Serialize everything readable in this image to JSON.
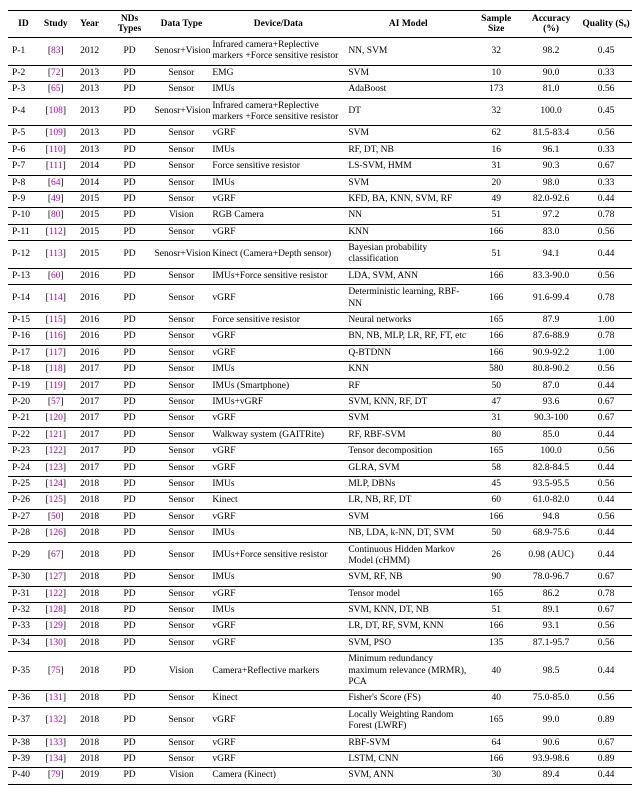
{
  "table": {
    "columns": [
      "ID",
      "Study",
      "Year",
      "NDs Types",
      "Data Type",
      "Device/Data",
      "AI Model",
      "Sample Size",
      "Accuracy (%)",
      "Quality (Sₒ)"
    ],
    "study_color": "#b000b0",
    "rows": [
      {
        "id": "P-1",
        "study": "83",
        "year": "2012",
        "nds": "PD",
        "datatype": "Senosr+Vision",
        "device": "Infrared camera+Replective markers +Force sensitive resistor",
        "aimodel": "NN, SVM",
        "sample": "32",
        "acc": "98.2",
        "quality": "0.45"
      },
      {
        "id": "P-2",
        "study": "72",
        "year": "2013",
        "nds": "PD",
        "datatype": "Sensor",
        "device": "EMG",
        "aimodel": "SVM",
        "sample": "10",
        "acc": "90.0",
        "quality": "0.33"
      },
      {
        "id": "P-3",
        "study": "65",
        "year": "2013",
        "nds": "PD",
        "datatype": "Sensor",
        "device": "IMUs",
        "aimodel": "AdaBoost",
        "sample": "173",
        "acc": "81.0",
        "quality": "0.56"
      },
      {
        "id": "P-4",
        "study": "108",
        "year": "2013",
        "nds": "PD",
        "datatype": "Senosr+Vision",
        "device": "Infrared camera+Replective markers +Force sensitive resistor",
        "aimodel": "DT",
        "sample": "32",
        "acc": "100.0",
        "quality": "0.45"
      },
      {
        "id": "P-5",
        "study": "109",
        "year": "2013",
        "nds": "PD",
        "datatype": "Sensor",
        "device": "vGRF",
        "aimodel": "SVM",
        "sample": "62",
        "acc": "81.5-83.4",
        "quality": "0.56"
      },
      {
        "id": "P-6",
        "study": "110",
        "year": "2013",
        "nds": "PD",
        "datatype": "Sensor",
        "device": "IMUs",
        "aimodel": "RF, DT, NB",
        "sample": "16",
        "acc": "96.1",
        "quality": "0.33"
      },
      {
        "id": "P-7",
        "study": "111",
        "year": "2014",
        "nds": "PD",
        "datatype": "Sensor",
        "device": "Force sensitive resistor",
        "aimodel": "LS-SVM, HMM",
        "sample": "31",
        "acc": "90.3",
        "quality": "0.67"
      },
      {
        "id": "P-8",
        "study": "64",
        "year": "2014",
        "nds": "PD",
        "datatype": "Sensor",
        "device": "IMUs",
        "aimodel": "SVM",
        "sample": "20",
        "acc": "98.0",
        "quality": "0.33"
      },
      {
        "id": "P-9",
        "study": "49",
        "year": "2015",
        "nds": "PD",
        "datatype": "Sensor",
        "device": "vGRF",
        "aimodel": "KFD, BA, KNN, SVM, RF",
        "sample": "49",
        "acc": "82.0-92.6",
        "quality": "0.44"
      },
      {
        "id": "P-10",
        "study": "80",
        "year": "2015",
        "nds": "PD",
        "datatype": "Vision",
        "device": "RGB Camera",
        "aimodel": "NN",
        "sample": "51",
        "acc": "97.2",
        "quality": "0.78"
      },
      {
        "id": "P-11",
        "study": "112",
        "year": "2015",
        "nds": "PD",
        "datatype": "Sensor",
        "device": "vGRF",
        "aimodel": "KNN",
        "sample": "166",
        "acc": "83.0",
        "quality": "0.56"
      },
      {
        "id": "P-12",
        "study": "113",
        "year": "2015",
        "nds": "PD",
        "datatype": "Senosr+Vision",
        "device": "Kinect (Camera+Depth sensor)",
        "aimodel": "Bayesian probability classification",
        "sample": "51",
        "acc": "94.1",
        "quality": "0.44"
      },
      {
        "id": "P-13",
        "study": "60",
        "year": "2016",
        "nds": "PD",
        "datatype": "Sensor",
        "device": "IMUs+Force sensitive resistor",
        "aimodel": "LDA, SVM, ANN",
        "sample": "166",
        "acc": "83.3-90.0",
        "quality": "0.56"
      },
      {
        "id": "P-14",
        "study": "114",
        "year": "2016",
        "nds": "PD",
        "datatype": "Sensor",
        "device": "vGRF",
        "aimodel": "Deterministic learning, RBF-NN",
        "sample": "166",
        "acc": "91.6-99.4",
        "quality": "0.78"
      },
      {
        "id": "P-15",
        "study": "115",
        "year": "2016",
        "nds": "PD",
        "datatype": "Sensor",
        "device": "Force sensitive resistor",
        "aimodel": "Neural networks",
        "sample": "165",
        "acc": "87.9",
        "quality": "1.00"
      },
      {
        "id": "P-16",
        "study": "116",
        "year": "2016",
        "nds": "PD",
        "datatype": "Sensor",
        "device": "vGRF",
        "aimodel": "BN, NB, MLP, LR, RF, FT, etc",
        "sample": "166",
        "acc": "87.6-88.9",
        "quality": "0.78"
      },
      {
        "id": "P-17",
        "study": "117",
        "year": "2016",
        "nds": "PD",
        "datatype": "Sensor",
        "device": "vGRF",
        "aimodel": "Q-BTDNN",
        "sample": "166",
        "acc": "90.9-92.2",
        "quality": "1.00"
      },
      {
        "id": "P-18",
        "study": "118",
        "year": "2017",
        "nds": "PD",
        "datatype": "Sensor",
        "device": "IMUs",
        "aimodel": "KNN",
        "sample": "580",
        "acc": "80.8-90.2",
        "quality": "0.56"
      },
      {
        "id": "P-19",
        "study": "119",
        "year": "2017",
        "nds": "PD",
        "datatype": "Sensor",
        "device": "IMUs (Smartphone)",
        "aimodel": "RF",
        "sample": "50",
        "acc": "87.0",
        "quality": "0.44"
      },
      {
        "id": "P-20",
        "study": "57",
        "year": "2017",
        "nds": "PD",
        "datatype": "Sensor",
        "device": "IMUs+vGRF",
        "aimodel": "SVM, KNN, RF, DT",
        "sample": "47",
        "acc": "93.6",
        "quality": "0.67"
      },
      {
        "id": "P-21",
        "study": "120",
        "year": "2017",
        "nds": "PD",
        "datatype": "Sensor",
        "device": "vGRF",
        "aimodel": "SVM",
        "sample": "31",
        "acc": "90.3-100",
        "quality": "0.67"
      },
      {
        "id": "P-22",
        "study": "121",
        "year": "2017",
        "nds": "PD",
        "datatype": "Sensor",
        "device": "Walkway system (GAITRite)",
        "aimodel": "RF, RBF-SVM",
        "sample": "80",
        "acc": "85.0",
        "quality": "0.44"
      },
      {
        "id": "P-23",
        "study": "122",
        "year": "2017",
        "nds": "PD",
        "datatype": "Sensor",
        "device": "vGRF",
        "aimodel": "Tensor decomposition",
        "sample": "165",
        "acc": "100.0",
        "quality": "0.56"
      },
      {
        "id": "P-24",
        "study": "123",
        "year": "2017",
        "nds": "PD",
        "datatype": "Sensor",
        "device": "vGRF",
        "aimodel": "GLRA, SVM",
        "sample": "58",
        "acc": "82.8-84.5",
        "quality": "0.44"
      },
      {
        "id": "P-25",
        "study": "124",
        "year": "2018",
        "nds": "PD",
        "datatype": "Sensor",
        "device": "IMUs",
        "aimodel": "MLP, DBNs",
        "sample": "45",
        "acc": "93.5-95.5",
        "quality": "0.56"
      },
      {
        "id": "P-26",
        "study": "125",
        "year": "2018",
        "nds": "PD",
        "datatype": "Sensor",
        "device": "Kinect",
        "aimodel": "LR, NB, RF, DT",
        "sample": "60",
        "acc": "61.0-82.0",
        "quality": "0.44"
      },
      {
        "id": "P-27",
        "study": "50",
        "year": "2018",
        "nds": "PD",
        "datatype": "Sensor",
        "device": "vGRF",
        "aimodel": "SVM",
        "sample": "166",
        "acc": "94.8",
        "quality": "0.56"
      },
      {
        "id": "P-28",
        "study": "126",
        "year": "2018",
        "nds": "PD",
        "datatype": "Sensor",
        "device": "IMUs",
        "aimodel": "NB, LDA, k-NN, DT, SVM",
        "sample": "50",
        "acc": "68.9-75.6",
        "quality": "0.44"
      },
      {
        "id": "P-29",
        "study": "67",
        "year": "2018",
        "nds": "PD",
        "datatype": "Sensor",
        "device": "IMUs+Force sensitive resistor",
        "aimodel": "Continuous Hidden Markov Model (cHMM)",
        "sample": "26",
        "acc": "0.98 (AUC)",
        "quality": "0.44"
      },
      {
        "id": "P-30",
        "study": "127",
        "year": "2018",
        "nds": "PD",
        "datatype": "Sensor",
        "device": "IMUs",
        "aimodel": "SVM, RF, NB",
        "sample": "90",
        "acc": "78.0-96.7",
        "quality": "0.67"
      },
      {
        "id": "P-31",
        "study": "122",
        "year": "2018",
        "nds": "PD",
        "datatype": "Sensor",
        "device": "vGRF",
        "aimodel": "Tensor model",
        "sample": "165",
        "acc": "86.2",
        "quality": "0.78"
      },
      {
        "id": "P-32",
        "study": "128",
        "year": "2018",
        "nds": "PD",
        "datatype": "Sensor",
        "device": "IMUs",
        "aimodel": "SVM, KNN, DT, NB",
        "sample": "51",
        "acc": "89.1",
        "quality": "0.67"
      },
      {
        "id": "P-33",
        "study": "129",
        "year": "2018",
        "nds": "PD",
        "datatype": "Sensor",
        "device": "vGRF",
        "aimodel": "LR, DT, RF, SVM, KNN",
        "sample": "166",
        "acc": "93.1",
        "quality": "0.56"
      },
      {
        "id": "P-34",
        "study": "130",
        "year": "2018",
        "nds": "PD",
        "datatype": "Sensor",
        "device": "vGRF",
        "aimodel": "SVM, PSO",
        "sample": "135",
        "acc": "87.1-95.7",
        "quality": "0.56"
      },
      {
        "id": "P-35",
        "study": "75",
        "year": "2018",
        "nds": "PD",
        "datatype": "Vision",
        "device": "Camera+Reflective markers",
        "aimodel": "Minimum redundancy maximum relevance (MRMR), PCA",
        "sample": "40",
        "acc": "98.5",
        "quality": "0.44"
      },
      {
        "id": "P-36",
        "study": "131",
        "year": "2018",
        "nds": "PD",
        "datatype": "Sensor",
        "device": "Kinect",
        "aimodel": "Fisher's Score (FS)",
        "sample": "40",
        "acc": "75.0-85.0",
        "quality": "0.56"
      },
      {
        "id": "P-37",
        "study": "132",
        "year": "2018",
        "nds": "PD",
        "datatype": "Sensor",
        "device": "vGRF",
        "aimodel": "Locally Weighting Random Forest (LWRF)",
        "sample": "165",
        "acc": "99.0",
        "quality": "0.89"
      },
      {
        "id": "P-38",
        "study": "133",
        "year": "2018",
        "nds": "PD",
        "datatype": "Sensor",
        "device": "vGRF",
        "aimodel": "RBF-SVM",
        "sample": "64",
        "acc": "90.6",
        "quality": "0.67"
      },
      {
        "id": "P-39",
        "study": "134",
        "year": "2018",
        "nds": "PD",
        "datatype": "Sensor",
        "device": "vGRF",
        "aimodel": "LSTM, CNN",
        "sample": "166",
        "acc": "93.9-98.6",
        "quality": "0.89"
      },
      {
        "id": "P-40",
        "study": "79",
        "year": "2019",
        "nds": "PD",
        "datatype": "Vision",
        "device": "Camera (Kinect)",
        "aimodel": "SVM, ANN",
        "sample": "30",
        "acc": "89.4",
        "quality": "0.44"
      }
    ]
  }
}
